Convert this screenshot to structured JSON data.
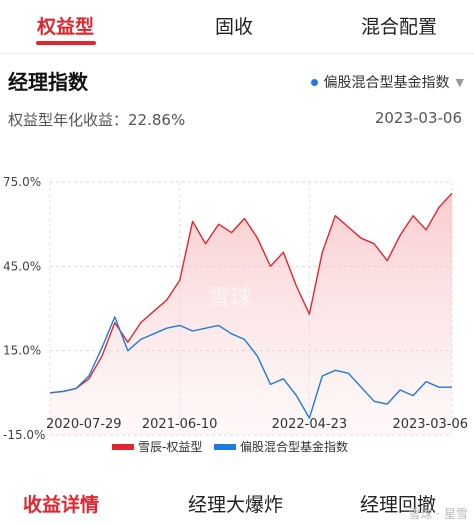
{
  "tabs": [
    {
      "label": "权益型"
    },
    {
      "label": "固收"
    },
    {
      "label": "混合配置"
    }
  ],
  "section": {
    "title": "经理指数",
    "index_selector": "偏股混合型基金指数",
    "annual_return_label": "权益型年化收益：22.86%",
    "date": "2023-03-06"
  },
  "chart_data": {
    "type": "line",
    "title": "",
    "ylabel": "",
    "xlabel": "",
    "ylim": [
      -15,
      75
    ],
    "yticks": [
      "75.0%",
      "45.0%",
      "15.0%",
      "-15.0%"
    ],
    "xticks": [
      "2020-07-29",
      "2021-06-10",
      "2022-04-23",
      "2023-03-06"
    ],
    "watermark": "雪球",
    "series": [
      {
        "name": "雪辰-权益型",
        "color": "#e0262e",
        "x": [
          "2020-07-29",
          "2020-09",
          "2020-10",
          "2020-11",
          "2020-12",
          "2021-01",
          "2021-02",
          "2021-03",
          "2021-04",
          "2021-05",
          "2021-06-10",
          "2021-07",
          "2021-08",
          "2021-09",
          "2021-10",
          "2021-11",
          "2021-12",
          "2022-01",
          "2022-02",
          "2022-03",
          "2022-04-23",
          "2022-05",
          "2022-06",
          "2022-07",
          "2022-08",
          "2022-09",
          "2022-10",
          "2022-11",
          "2022-12",
          "2023-01",
          "2023-02",
          "2023-03-06"
        ],
        "values": [
          0,
          0.5,
          1.5,
          5,
          13,
          25,
          18,
          25,
          29,
          33,
          40,
          61,
          53,
          60,
          57,
          62,
          55,
          45,
          50,
          38,
          28,
          50,
          63,
          59,
          55,
          53,
          47,
          56,
          63,
          58,
          66,
          71
        ]
      },
      {
        "name": "偏股混合型基金指数",
        "color": "#1e7be0",
        "x": [
          "2020-07-29",
          "2020-09",
          "2020-10",
          "2020-11",
          "2020-12",
          "2021-01",
          "2021-02",
          "2021-03",
          "2021-04",
          "2021-05",
          "2021-06-10",
          "2021-07",
          "2021-08",
          "2021-09",
          "2021-10",
          "2021-11",
          "2021-12",
          "2022-01",
          "2022-02",
          "2022-03",
          "2022-04-23",
          "2022-05",
          "2022-06",
          "2022-07",
          "2022-08",
          "2022-09",
          "2022-10",
          "2022-11",
          "2022-12",
          "2023-01",
          "2023-02",
          "2023-03-06"
        ],
        "values": [
          0,
          0.5,
          1.5,
          6,
          16,
          27,
          15,
          19,
          21,
          23,
          24,
          22,
          23,
          24,
          21,
          19,
          13,
          3,
          5,
          -1,
          -9,
          6,
          8,
          7,
          2,
          -3,
          -4,
          1,
          -1,
          4,
          2,
          2
        ]
      }
    ]
  },
  "bottom_tabs": [
    {
      "label": "收益详情"
    },
    {
      "label": "经理大爆炸"
    },
    {
      "label": "经理回撤"
    }
  ],
  "watermark": "雪球 · 星雪"
}
